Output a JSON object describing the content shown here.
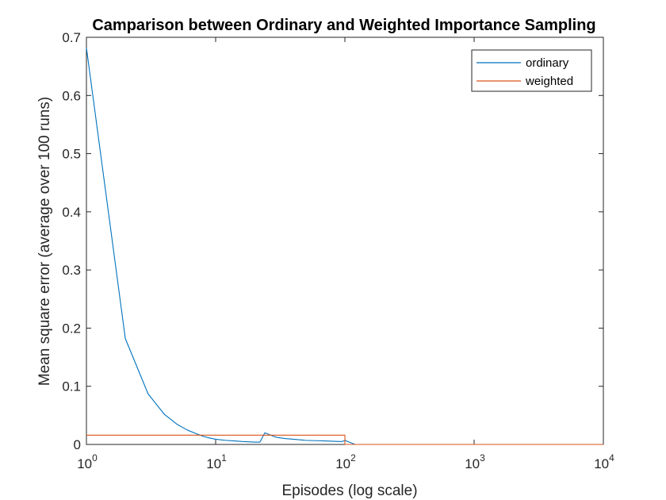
{
  "chart_data": {
    "type": "line",
    "title": "Camparison between Ordinary and Weighted Importance Sampling",
    "xlabel": "Episodes (log scale)",
    "ylabel": "Mean square error (average over 100 runs)",
    "x_scale": "log",
    "xlim": [
      1,
      10000
    ],
    "ylim": [
      0,
      0.7
    ],
    "x_ticks": [
      {
        "value": 1,
        "base": "10",
        "exp": "0"
      },
      {
        "value": 10,
        "base": "10",
        "exp": "1"
      },
      {
        "value": 100,
        "base": "10",
        "exp": "2"
      },
      {
        "value": 1000,
        "base": "10",
        "exp": "3"
      },
      {
        "value": 10000,
        "base": "10",
        "exp": "4"
      }
    ],
    "y_ticks": [
      {
        "value": 0,
        "label": "0"
      },
      {
        "value": 0.1,
        "label": "0.1"
      },
      {
        "value": 0.2,
        "label": "0.2"
      },
      {
        "value": 0.3,
        "label": "0.3"
      },
      {
        "value": 0.4,
        "label": "0.4"
      },
      {
        "value": 0.5,
        "label": "0.5"
      },
      {
        "value": 0.6,
        "label": "0.6"
      },
      {
        "value": 0.7,
        "label": "0.7"
      }
    ],
    "grid": false,
    "legend_position": "top-right",
    "series": [
      {
        "name": "ordinary",
        "color": "#0072bd",
        "x": [
          1,
          2,
          3,
          4,
          5,
          6,
          7,
          8,
          9,
          10,
          12,
          14,
          16,
          18,
          20,
          22,
          24,
          26,
          28,
          30,
          35,
          40,
          45,
          50,
          60,
          70,
          80,
          90,
          95,
          100,
          120,
          200,
          500,
          1000,
          3000,
          10000
        ],
        "y": [
          0.682,
          0.182,
          0.087,
          0.052,
          0.035,
          0.025,
          0.019,
          0.014,
          0.011,
          0.009,
          0.007,
          0.006,
          0.005,
          0.0045,
          0.004,
          0.004,
          0.02,
          0.017,
          0.014,
          0.012,
          0.01,
          0.009,
          0.008,
          0.007,
          0.0065,
          0.006,
          0.0055,
          0.005,
          0.005,
          0.007,
          0.0,
          0.0,
          0.0,
          0.0,
          0.0,
          0.0
        ]
      },
      {
        "name": "weighted",
        "color": "#d95319",
        "x": [
          1,
          100,
          100,
          10000
        ],
        "y": [
          0.016,
          0.016,
          0.0,
          0.0
        ]
      }
    ]
  }
}
